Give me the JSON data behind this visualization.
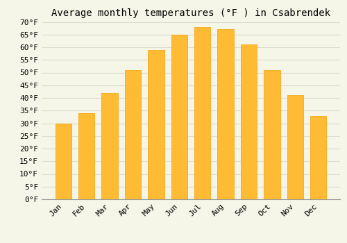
{
  "title": "Average monthly temperatures (°F ) in Csabrendek",
  "months": [
    "Jan",
    "Feb",
    "Mar",
    "Apr",
    "May",
    "Jun",
    "Jul",
    "Aug",
    "Sep",
    "Oct",
    "Nov",
    "Dec"
  ],
  "values": [
    30,
    34,
    42,
    51,
    59,
    65,
    68,
    67,
    61,
    51,
    41,
    33
  ],
  "bar_color_top": "#FFBB33",
  "bar_color_bot": "#F5A000",
  "background_color": "#F5F5E8",
  "grid_color": "#DDDDCC",
  "ylim": [
    0,
    70
  ],
  "yticks": [
    0,
    5,
    10,
    15,
    20,
    25,
    30,
    35,
    40,
    45,
    50,
    55,
    60,
    65,
    70
  ],
  "ylabel_suffix": "°F",
  "title_fontsize": 10,
  "tick_fontsize": 8,
  "font_family": "monospace"
}
